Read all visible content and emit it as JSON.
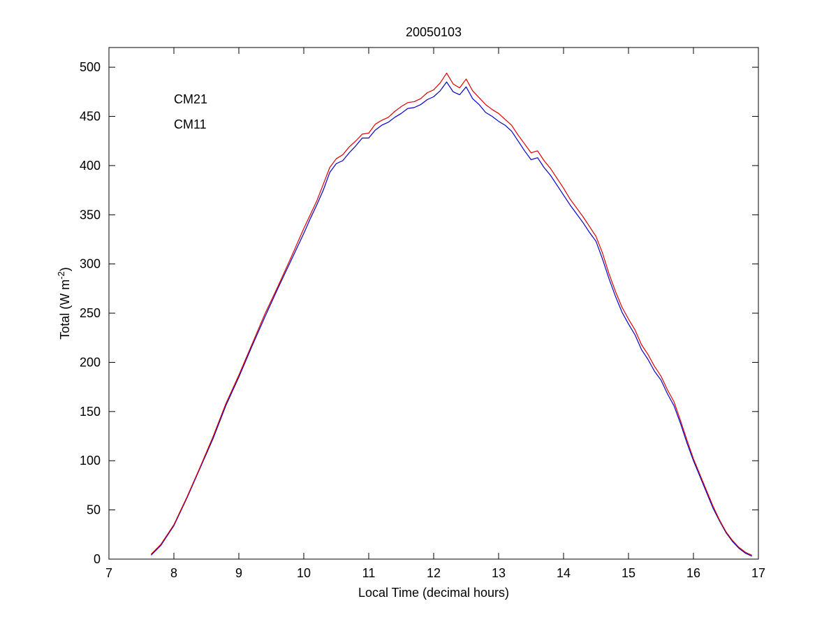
{
  "chart_data": {
    "type": "line",
    "title": "20050103",
    "xlabel": "Local Time (decimal hours)",
    "ylabel": {
      "prefix": "Total (W m",
      "exponent": "-2",
      "suffix": ")"
    },
    "xlim": [
      7,
      17
    ],
    "ylim": [
      0,
      520
    ],
    "xticks": [
      7,
      8,
      9,
      10,
      11,
      12,
      13,
      14,
      15,
      16,
      17
    ],
    "yticks": [
      0,
      50,
      100,
      150,
      200,
      250,
      300,
      350,
      400,
      450,
      500
    ],
    "grid": false,
    "legend_position": "top-left",
    "series": [
      {
        "name": "CM21",
        "color": "#0000cc",
        "points": [
          [
            7.65,
            4
          ],
          [
            7.8,
            14
          ],
          [
            8.0,
            34
          ],
          [
            8.2,
            62
          ],
          [
            8.4,
            92
          ],
          [
            8.6,
            122
          ],
          [
            8.8,
            156
          ],
          [
            9.0,
            185
          ],
          [
            9.2,
            216
          ],
          [
            9.4,
            246
          ],
          [
            9.6,
            275
          ],
          [
            9.8,
            303
          ],
          [
            10.0,
            331
          ],
          [
            10.1,
            346
          ],
          [
            10.2,
            360
          ],
          [
            10.3,
            375
          ],
          [
            10.4,
            393
          ],
          [
            10.5,
            402
          ],
          [
            10.6,
            405
          ],
          [
            10.7,
            413
          ],
          [
            10.8,
            420
          ],
          [
            10.9,
            428
          ],
          [
            11.0,
            428
          ],
          [
            11.1,
            436
          ],
          [
            11.2,
            441
          ],
          [
            11.3,
            444
          ],
          [
            11.4,
            449
          ],
          [
            11.5,
            453
          ],
          [
            11.6,
            458
          ],
          [
            11.7,
            459
          ],
          [
            11.8,
            462
          ],
          [
            11.9,
            467
          ],
          [
            12.0,
            470
          ],
          [
            12.1,
            476
          ],
          [
            12.2,
            485
          ],
          [
            12.3,
            475
          ],
          [
            12.4,
            472
          ],
          [
            12.5,
            480
          ],
          [
            12.6,
            468
          ],
          [
            12.7,
            462
          ],
          [
            12.8,
            454
          ],
          [
            12.9,
            450
          ],
          [
            13.0,
            445
          ],
          [
            13.1,
            441
          ],
          [
            13.2,
            435
          ],
          [
            13.3,
            425
          ],
          [
            13.4,
            415
          ],
          [
            13.5,
            406
          ],
          [
            13.6,
            408
          ],
          [
            13.7,
            398
          ],
          [
            13.8,
            390
          ],
          [
            13.9,
            380
          ],
          [
            14.0,
            370
          ],
          [
            14.1,
            360
          ],
          [
            14.2,
            351
          ],
          [
            14.3,
            342
          ],
          [
            14.4,
            332
          ],
          [
            14.5,
            323
          ],
          [
            14.6,
            305
          ],
          [
            14.7,
            285
          ],
          [
            14.8,
            267
          ],
          [
            14.9,
            251
          ],
          [
            15.0,
            239
          ],
          [
            15.1,
            228
          ],
          [
            15.2,
            213
          ],
          [
            15.3,
            203
          ],
          [
            15.4,
            191
          ],
          [
            15.5,
            182
          ],
          [
            15.6,
            168
          ],
          [
            15.7,
            156
          ],
          [
            15.8,
            138
          ],
          [
            15.9,
            118
          ],
          [
            16.0,
            100
          ],
          [
            16.1,
            84
          ],
          [
            16.2,
            68
          ],
          [
            16.3,
            52
          ],
          [
            16.4,
            39
          ],
          [
            16.5,
            27
          ],
          [
            16.6,
            18
          ],
          [
            16.7,
            11
          ],
          [
            16.8,
            6
          ],
          [
            16.9,
            3
          ]
        ]
      },
      {
        "name": "CM11",
        "color": "#dd0000",
        "points": [
          [
            7.65,
            5
          ],
          [
            7.8,
            15
          ],
          [
            8.0,
            35
          ],
          [
            8.2,
            63
          ],
          [
            8.4,
            93
          ],
          [
            8.6,
            124
          ],
          [
            8.8,
            158
          ],
          [
            9.0,
            187
          ],
          [
            9.2,
            218
          ],
          [
            9.4,
            249
          ],
          [
            9.6,
            277
          ],
          [
            9.8,
            306
          ],
          [
            10.0,
            336
          ],
          [
            10.1,
            350
          ],
          [
            10.2,
            364
          ],
          [
            10.3,
            381
          ],
          [
            10.4,
            398
          ],
          [
            10.5,
            407
          ],
          [
            10.6,
            411
          ],
          [
            10.7,
            419
          ],
          [
            10.8,
            425
          ],
          [
            10.9,
            432
          ],
          [
            11.0,
            433
          ],
          [
            11.1,
            442
          ],
          [
            11.2,
            446
          ],
          [
            11.3,
            449
          ],
          [
            11.4,
            455
          ],
          [
            11.5,
            460
          ],
          [
            11.6,
            464
          ],
          [
            11.7,
            465
          ],
          [
            11.8,
            468
          ],
          [
            11.9,
            474
          ],
          [
            12.0,
            477
          ],
          [
            12.1,
            484
          ],
          [
            12.2,
            494
          ],
          [
            12.3,
            483
          ],
          [
            12.4,
            479
          ],
          [
            12.5,
            488
          ],
          [
            12.6,
            476
          ],
          [
            12.7,
            469
          ],
          [
            12.8,
            462
          ],
          [
            12.9,
            457
          ],
          [
            13.0,
            453
          ],
          [
            13.1,
            447
          ],
          [
            13.2,
            441
          ],
          [
            13.3,
            431
          ],
          [
            13.4,
            422
          ],
          [
            13.5,
            413
          ],
          [
            13.6,
            415
          ],
          [
            13.7,
            405
          ],
          [
            13.8,
            397
          ],
          [
            13.9,
            387
          ],
          [
            14.0,
            377
          ],
          [
            14.1,
            366
          ],
          [
            14.2,
            357
          ],
          [
            14.3,
            348
          ],
          [
            14.4,
            338
          ],
          [
            14.5,
            328
          ],
          [
            14.6,
            311
          ],
          [
            14.7,
            290
          ],
          [
            14.8,
            272
          ],
          [
            14.9,
            256
          ],
          [
            15.0,
            244
          ],
          [
            15.1,
            233
          ],
          [
            15.2,
            218
          ],
          [
            15.3,
            208
          ],
          [
            15.4,
            196
          ],
          [
            15.5,
            186
          ],
          [
            15.6,
            172
          ],
          [
            15.7,
            160
          ],
          [
            15.8,
            141
          ],
          [
            15.9,
            121
          ],
          [
            16.0,
            102
          ],
          [
            16.1,
            86
          ],
          [
            16.2,
            70
          ],
          [
            16.3,
            54
          ],
          [
            16.4,
            40
          ],
          [
            16.5,
            28
          ],
          [
            16.6,
            19
          ],
          [
            16.7,
            12
          ],
          [
            16.8,
            7
          ],
          [
            16.9,
            4
          ]
        ]
      }
    ]
  }
}
